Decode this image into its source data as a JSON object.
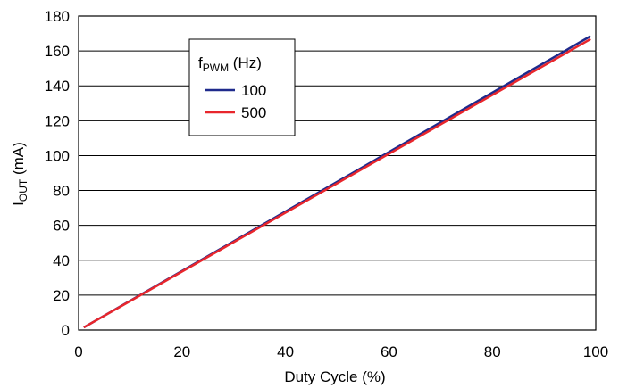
{
  "chart_data": {
    "type": "line",
    "xlabel": "Duty Cycle (%)",
    "ylabel_main": "I",
    "ylabel_sub": "OUT",
    "ylabel_unit": " (mA)",
    "xlim": [
      0,
      100
    ],
    "ylim": [
      0,
      180
    ],
    "x_ticks": [
      0,
      20,
      40,
      60,
      80,
      100
    ],
    "y_ticks": [
      0,
      20,
      40,
      60,
      80,
      100,
      120,
      140,
      160,
      180
    ],
    "grid": "horizontal",
    "legend": {
      "title_main": "f",
      "title_sub": "PWM",
      "title_unit": " (Hz)",
      "placement": "top-left"
    },
    "series": [
      {
        "name": "100",
        "color": "#1f2a8c",
        "x": [
          1,
          99
        ],
        "y": [
          1.5,
          168.5
        ]
      },
      {
        "name": "500",
        "color": "#e8262c",
        "x": [
          1,
          99
        ],
        "y": [
          1.5,
          166.8
        ]
      }
    ]
  }
}
